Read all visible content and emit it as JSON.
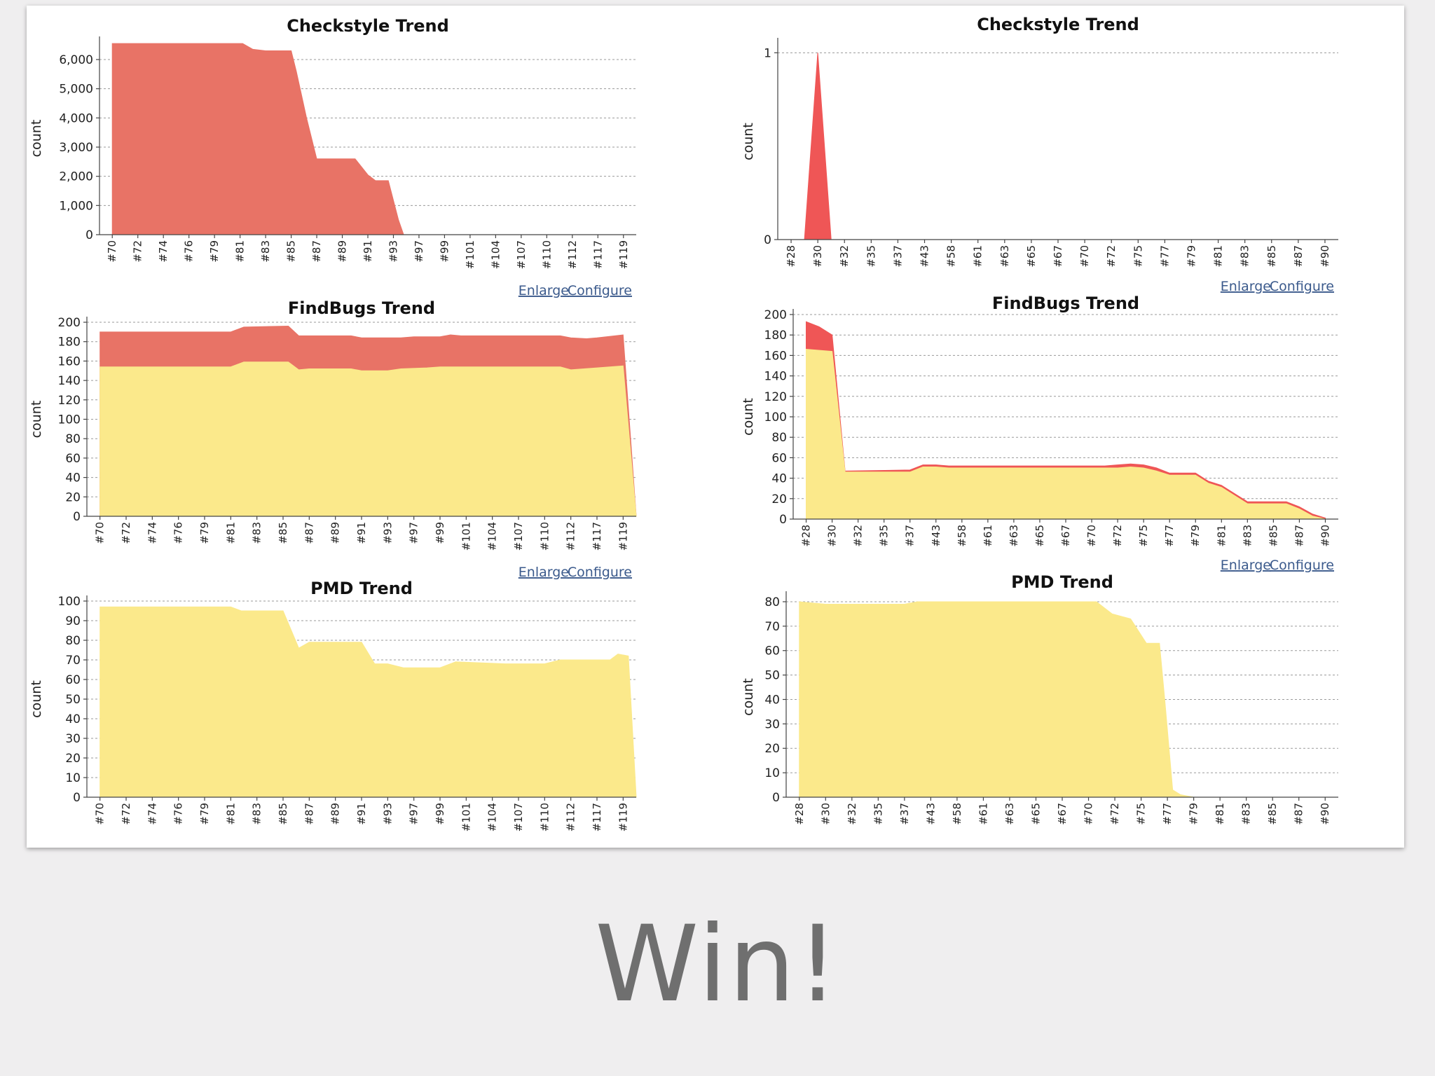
{
  "slide": {
    "title": "Win!"
  },
  "links": {
    "enlarge": "Enlarge",
    "configure": "Configure"
  },
  "colors": {
    "red": "#e87366",
    "red_bright": "#ef5656",
    "yellow": "#fbe98b",
    "yellow_edge": "#f2d760"
  },
  "chart_data": [
    {
      "id": "left-checkstyle",
      "type": "area",
      "title": "Checkstyle Trend",
      "ylabel": "count",
      "ylim": [
        0,
        6600
      ],
      "yticks": [
        0,
        1000,
        2000,
        3000,
        4000,
        5000,
        6000
      ],
      "x_labels": [
        "#70",
        "#72",
        "#74",
        "#76",
        "#79",
        "#81",
        "#83",
        "#85",
        "#87",
        "#89",
        "#91",
        "#93",
        "#97",
        "#99",
        "#101",
        "#104",
        "#107",
        "#110",
        "#112",
        "#117",
        "#119"
      ],
      "has_links": true,
      "series": [
        {
          "color": "red",
          "points": [
            [
              0,
              6550
            ],
            [
              5.1,
              6550
            ],
            [
              5.5,
              6350
            ],
            [
              6,
              6300
            ],
            [
              7,
              6300
            ],
            [
              7.2,
              5600
            ],
            [
              7.6,
              4000
            ],
            [
              8,
              2600
            ],
            [
              9.5,
              2600
            ],
            [
              10,
              2050
            ],
            [
              10.3,
              1850
            ],
            [
              10.8,
              1850
            ],
            [
              11.2,
              500
            ],
            [
              11.4,
              0
            ],
            [
              20.5,
              0
            ]
          ]
        }
      ]
    },
    {
      "id": "right-checkstyle",
      "type": "area",
      "title": "Checkstyle Trend",
      "ylabel": "count",
      "ylim": [
        0,
        1.05
      ],
      "yticks": [
        0,
        1
      ],
      "x_labels": [
        "#28",
        "#30",
        "#32",
        "#35",
        "#37",
        "#43",
        "#58",
        "#61",
        "#63",
        "#65",
        "#67",
        "#70",
        "#72",
        "#75",
        "#77",
        "#79",
        "#81",
        "#83",
        "#85",
        "#87",
        "#90"
      ],
      "has_links": true,
      "series": [
        {
          "color": "red_bright",
          "points": [
            [
              0.5,
              0
            ],
            [
              1,
              1
            ],
            [
              1.5,
              0
            ],
            [
              20,
              0
            ]
          ]
        }
      ]
    },
    {
      "id": "left-findbugs",
      "type": "area",
      "title": "FindBugs Trend",
      "ylabel": "count",
      "ylim": [
        0,
        200
      ],
      "yticks": [
        0,
        20,
        40,
        60,
        80,
        100,
        120,
        140,
        160,
        180,
        200
      ],
      "x_labels": [
        "#70",
        "#72",
        "#74",
        "#76",
        "#79",
        "#81",
        "#83",
        "#85",
        "#87",
        "#89",
        "#91",
        "#93",
        "#97",
        "#99",
        "#101",
        "#104",
        "#107",
        "#110",
        "#112",
        "#117",
        "#119"
      ],
      "has_links": true,
      "series": [
        {
          "color": "red",
          "points": [
            [
              0,
              190
            ],
            [
              5,
              190
            ],
            [
              5.5,
              195
            ],
            [
              7.2,
              196
            ],
            [
              7.6,
              186
            ],
            [
              9.6,
              186
            ],
            [
              10,
              184
            ],
            [
              11.5,
              184
            ],
            [
              12,
              185
            ],
            [
              13,
              185
            ],
            [
              13.4,
              187
            ],
            [
              13.8,
              186
            ],
            [
              17.6,
              186
            ],
            [
              18,
              184
            ],
            [
              18.6,
              183
            ],
            [
              19,
              184
            ],
            [
              20,
              187
            ],
            [
              20.5,
              0
            ]
          ]
        },
        {
          "color": "yellow",
          "points": [
            [
              0,
              154
            ],
            [
              5,
              154
            ],
            [
              5.5,
              159
            ],
            [
              7.2,
              159
            ],
            [
              7.6,
              151
            ],
            [
              8,
              152
            ],
            [
              9.6,
              152
            ],
            [
              10,
              150
            ],
            [
              11,
              150
            ],
            [
              11.5,
              152
            ],
            [
              12.5,
              153
            ],
            [
              13,
              154
            ],
            [
              17.6,
              154
            ],
            [
              18,
              151
            ],
            [
              18.5,
              152
            ],
            [
              19,
              153
            ],
            [
              20,
              155
            ],
            [
              20.5,
              0
            ]
          ]
        }
      ]
    },
    {
      "id": "right-findbugs",
      "type": "area",
      "title": "FindBugs Trend",
      "ylabel": "count",
      "ylim": [
        0,
        200
      ],
      "yticks": [
        0,
        20,
        40,
        60,
        80,
        100,
        120,
        140,
        160,
        180,
        200
      ],
      "x_labels": [
        "#28",
        "#30",
        "#32",
        "#35",
        "#37",
        "#43",
        "#58",
        "#61",
        "#63",
        "#65",
        "#67",
        "#70",
        "#72",
        "#75",
        "#77",
        "#79",
        "#81",
        "#83",
        "#85",
        "#87",
        "#90"
      ],
      "has_links": true,
      "series": [
        {
          "color": "red_bright",
          "points": [
            [
              0,
              193
            ],
            [
              0.5,
              188
            ],
            [
              1,
              180
            ],
            [
              1.5,
              47
            ],
            [
              4,
              48
            ],
            [
              4.5,
              53
            ],
            [
              5,
              53
            ],
            [
              5.5,
              52
            ],
            [
              11.5,
              52
            ],
            [
              12,
              53
            ],
            [
              12.5,
              54
            ],
            [
              13,
              53
            ],
            [
              13.5,
              50
            ],
            [
              14,
              45
            ],
            [
              15,
              45
            ],
            [
              15.5,
              37
            ],
            [
              16,
              33
            ],
            [
              16.5,
              25
            ],
            [
              17,
              17
            ],
            [
              18.5,
              17
            ],
            [
              19,
              12
            ],
            [
              19.5,
              5
            ],
            [
              20,
              1
            ]
          ]
        },
        {
          "color": "yellow",
          "points": [
            [
              0,
              166
            ],
            [
              1,
              164
            ],
            [
              1.5,
              46
            ],
            [
              4,
              46
            ],
            [
              4.5,
              51
            ],
            [
              5,
              51
            ],
            [
              5.5,
              50
            ],
            [
              11.5,
              50
            ],
            [
              12,
              50
            ],
            [
              12.5,
              51
            ],
            [
              13,
              50
            ],
            [
              13.5,
              47
            ],
            [
              14,
              43
            ],
            [
              15,
              43
            ],
            [
              15.5,
              35
            ],
            [
              16,
              31
            ],
            [
              16.5,
              23
            ],
            [
              17,
              15
            ],
            [
              18.5,
              15
            ],
            [
              19,
              10
            ],
            [
              19.5,
              3
            ],
            [
              20,
              0
            ]
          ]
        }
      ]
    },
    {
      "id": "left-pmd",
      "type": "area",
      "title": "PMD Trend",
      "ylabel": "count",
      "ylim": [
        0,
        100
      ],
      "yticks": [
        0,
        10,
        20,
        30,
        40,
        50,
        60,
        70,
        80,
        90,
        100
      ],
      "x_labels": [
        "#70",
        "#72",
        "#74",
        "#76",
        "#79",
        "#81",
        "#83",
        "#85",
        "#87",
        "#89",
        "#91",
        "#93",
        "#97",
        "#99",
        "#101",
        "#104",
        "#107",
        "#110",
        "#112",
        "#117",
        "#119"
      ],
      "has_links": false,
      "series": [
        {
          "color": "yellow",
          "points": [
            [
              0,
              97
            ],
            [
              5,
              97
            ],
            [
              5.4,
              95
            ],
            [
              7,
              95
            ],
            [
              7.6,
              76
            ],
            [
              8,
              79
            ],
            [
              10,
              79
            ],
            [
              10.5,
              68
            ],
            [
              11,
              68
            ],
            [
              11.6,
              66
            ],
            [
              13,
              66
            ],
            [
              13.6,
              69
            ],
            [
              15.5,
              68
            ],
            [
              16,
              68
            ],
            [
              17,
              68
            ],
            [
              17.6,
              70
            ],
            [
              19.5,
              70
            ],
            [
              19.8,
              73
            ],
            [
              20.2,
              72
            ],
            [
              20.5,
              0
            ]
          ]
        }
      ]
    },
    {
      "id": "right-pmd",
      "type": "area",
      "title": "PMD Trend",
      "ylabel": "count",
      "ylim": [
        0,
        82
      ],
      "yticks": [
        0,
        10,
        20,
        30,
        40,
        50,
        60,
        70,
        80
      ],
      "x_labels": [
        "#28",
        "#30",
        "#32",
        "#35",
        "#37",
        "#43",
        "#58",
        "#61",
        "#63",
        "#65",
        "#67",
        "#70",
        "#72",
        "#75",
        "#77",
        "#79",
        "#81",
        "#83",
        "#85",
        "#87",
        "#90"
      ],
      "has_links": false,
      "series": [
        {
          "color": "yellow",
          "points": [
            [
              0,
              80
            ],
            [
              1,
              79
            ],
            [
              4,
              79
            ],
            [
              4.5,
              80
            ],
            [
              11.3,
              80
            ],
            [
              11.9,
              75
            ],
            [
              12.6,
              73
            ],
            [
              13.2,
              63
            ],
            [
              13.7,
              63
            ],
            [
              13.9,
              40
            ],
            [
              14.2,
              3
            ],
            [
              14.5,
              1
            ],
            [
              15,
              0
            ],
            [
              20,
              0
            ]
          ]
        }
      ]
    }
  ]
}
